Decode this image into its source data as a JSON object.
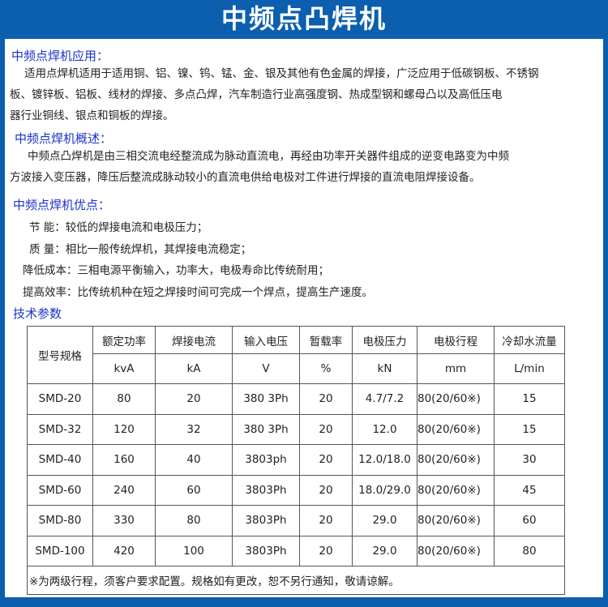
{
  "title": "中频点凸焊机",
  "sections": {
    "application": {
      "heading": "中频点焊机应用：",
      "lines": [
        "适用点焊机适用于适用铜、铝、镍、钨、锰、金、银及其他有色金属的焊接，广泛应用于低碳钢板、不锈钢",
        "板、镀锌板、铝板、线材的焊接、多点凸焊，汽车制造行业高强度钢、热成型钢和螺母凸以及高低压电",
        "器行业铜线、银点和铜板的焊接。"
      ]
    },
    "overview": {
      "heading": "中频点焊机概述：",
      "lines": [
        "中频点凸焊机是由三相交流电经整流成为脉动直流电，再经由功率开关器件组成的逆变电路变为中频",
        "方波接入变压器，降压后整流成脉动较小的直流电供给电极对工件进行焊接的直流电阻焊接设备。"
      ]
    },
    "advantages": {
      "heading": "中频点焊机优点：",
      "lines": [
        "节  能：较低的焊接电流和电极压力；",
        "质  量：相比一般传统焊机，其焊接电流稳定；",
        "降低成本：三相电源平衡输入，功率大，电极寿命比传统耐用；",
        "提高效率：比传统机种在短之焊接时间可完成一个焊点，提高生产速度。"
      ]
    },
    "specs": {
      "heading": "技术参数"
    }
  },
  "table": {
    "model_header": "型号规格",
    "headers": [
      "额定功率",
      "焊接电流",
      "输入电压",
      "暂载率",
      "电极压力",
      "电极行程",
      "冷却水流量"
    ],
    "units": [
      "kvA",
      "kA",
      "V",
      "%",
      "kN",
      "mm",
      "L/min"
    ],
    "rows": [
      [
        "SMD-20",
        "80",
        "20",
        "380 3Ph",
        "20",
        "4.7/7.2",
        "80(20/60※)",
        "15"
      ],
      [
        "SMD-32",
        "120",
        "32",
        "380 3Ph",
        "20",
        "12.0",
        "80(20/60※)",
        "15"
      ],
      [
        "SMD-40",
        "160",
        "40",
        "3803ph",
        "20",
        "12.0/18.0",
        "80(20/60※)",
        "30"
      ],
      [
        "SMD-60",
        "240",
        "60",
        "3803Ph",
        "20",
        "18.0/29.0",
        "80(20/60※)",
        "45"
      ],
      [
        "SMD-80",
        "330",
        "80",
        "3803Ph",
        "20",
        "29.0",
        "80(20/60※)",
        "60"
      ],
      [
        "SMD-100",
        "420",
        "100",
        "3803Ph",
        "20",
        "29.0",
        "80(20/60※)",
        "80"
      ]
    ],
    "note": "※为两级行程，须客户要求配置。规格如有更改，恕不另行通知，敬请谅解。"
  },
  "colors": {
    "background": "#0b5fae",
    "heading": "#1a33c8"
  }
}
